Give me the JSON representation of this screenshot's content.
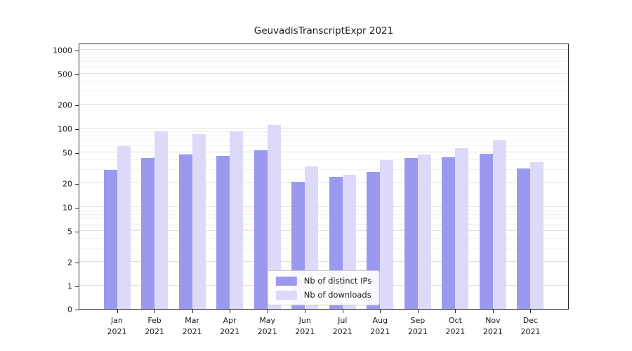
{
  "title": "GeuvadisTranscriptExpr 2021",
  "colors": {
    "distinct_ips": "#9b99ef",
    "downloads": "#dcdaf8",
    "grid_major": "#e0e0e0",
    "grid_minor": "#f1f1f1",
    "axis": "#2b2b2b",
    "text": "#1a1a1a"
  },
  "legend": {
    "items": [
      {
        "label": "Nb of distinct IPs",
        "color": "#9b99ef"
      },
      {
        "label": "Nb of downloads",
        "color": "#dcdaf8"
      }
    ]
  },
  "x_axis": {
    "months": [
      "Jan",
      "Feb",
      "Mar",
      "Apr",
      "May",
      "Jun",
      "Jul",
      "Aug",
      "Sep",
      "Oct",
      "Nov",
      "Dec"
    ],
    "year": "2021"
  },
  "y_axis": {
    "ticks": [
      0,
      1,
      2,
      5,
      10,
      20,
      50,
      100,
      200,
      500,
      1000
    ],
    "scale": "symlog"
  },
  "chart_data": {
    "type": "bar",
    "title": "GeuvadisTranscriptExpr 2021",
    "categories": [
      "Jan 2021",
      "Feb 2021",
      "Mar 2021",
      "Apr 2021",
      "May 2021",
      "Jun 2021",
      "Jul 2021",
      "Aug 2021",
      "Sep 2021",
      "Oct 2021",
      "Nov 2021",
      "Dec 2021"
    ],
    "series": [
      {
        "name": "Nb of distinct IPs",
        "color": "#9b99ef",
        "values": [
          30,
          42,
          47,
          45,
          53,
          21,
          24,
          28,
          42,
          43,
          48,
          31
        ]
      },
      {
        "name": "Nb of downloads",
        "color": "#dcdaf8",
        "values": [
          60,
          92,
          85,
          93,
          110,
          33,
          26,
          40,
          47,
          56,
          70,
          37
        ]
      }
    ],
    "yticks": [
      0,
      1,
      2,
      5,
      10,
      20,
      50,
      100,
      200,
      500,
      1000
    ],
    "yscale": "symlog",
    "ylim": [
      0,
      1200
    ],
    "grid": true,
    "legend_position": "lower center"
  }
}
